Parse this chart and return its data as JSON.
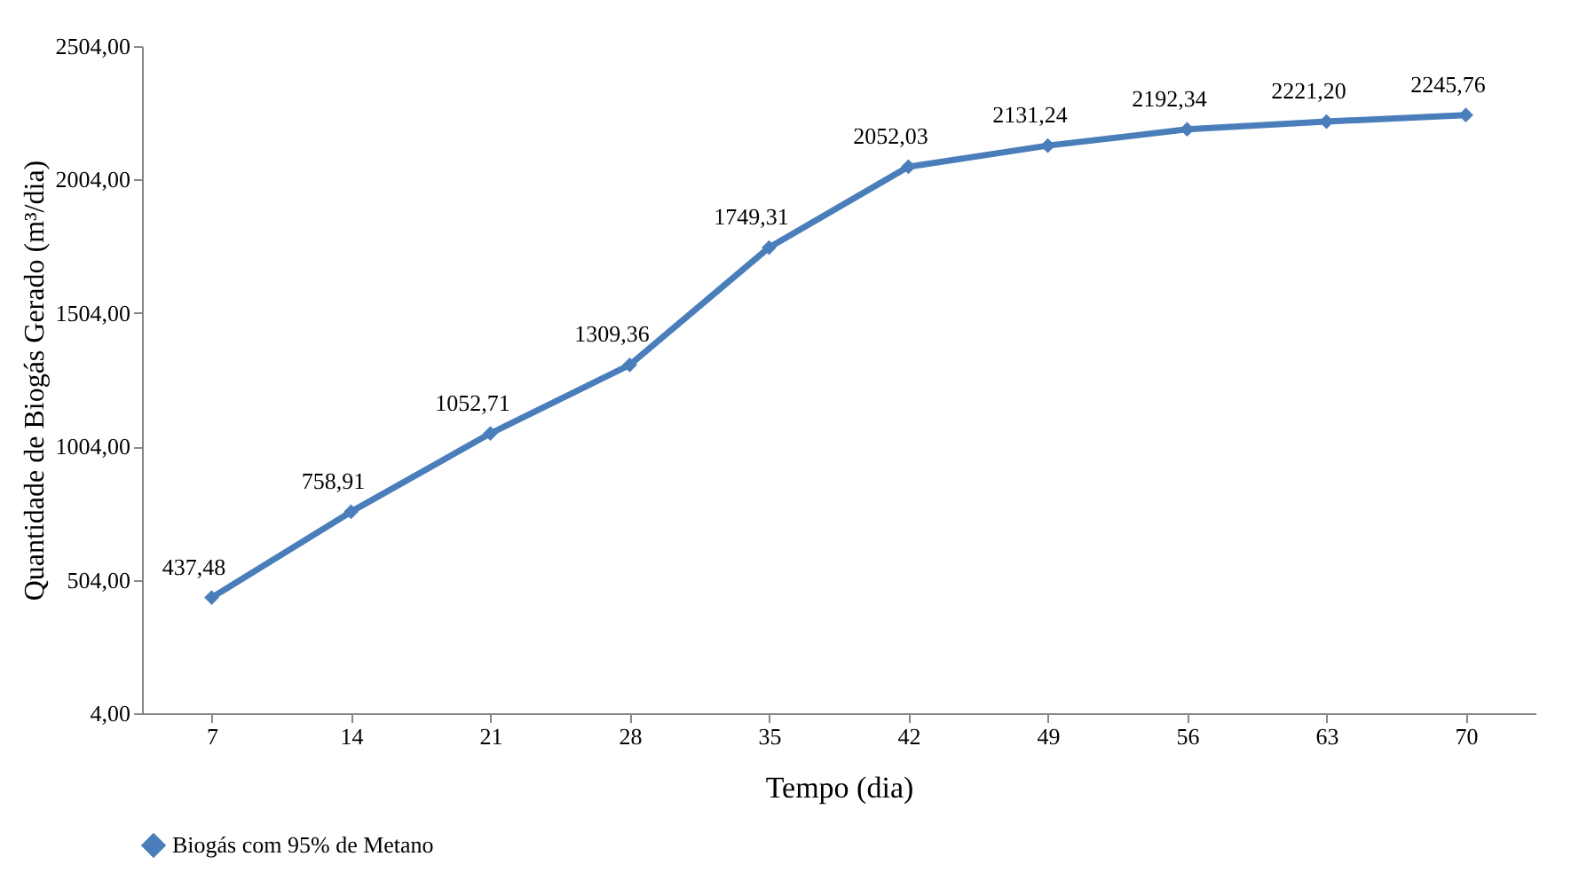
{
  "chart_data": {
    "type": "line",
    "xlabel": "Tempo (dia)",
    "ylabel": "Quantidade  de Biogás  Gerado (m³/dia)",
    "categories": [
      "7",
      "14",
      "21",
      "28",
      "35",
      "42",
      "49",
      "56",
      "63",
      "70"
    ],
    "series": [
      {
        "name": "Biogás  com 95% de Metano",
        "color": "#4a7ebb",
        "values": [
          437.48,
          758.91,
          1052.71,
          1309.36,
          1749.31,
          2052.03,
          2131.24,
          2192.34,
          2221.2,
          2245.76
        ],
        "value_labels": [
          "437,48",
          "758,91",
          "1052,71",
          "1309,36",
          "1749,31",
          "2052,03",
          "2131,24",
          "2192,34",
          "2221,20",
          "2245,76"
        ]
      }
    ],
    "ylim": [
      4,
      2504
    ],
    "yticks": [
      {
        "value": 4,
        "label": "4,00"
      },
      {
        "value": 504,
        "label": "504,00"
      },
      {
        "value": 1004,
        "label": "1004,00"
      },
      {
        "value": 1504,
        "label": "1504,00"
      },
      {
        "value": 2004,
        "label": "2004,00"
      },
      {
        "value": 2504,
        "label": "2504,00"
      }
    ],
    "grid": false,
    "legend": "bottom",
    "marker": "diamond",
    "line_style": "solid"
  }
}
